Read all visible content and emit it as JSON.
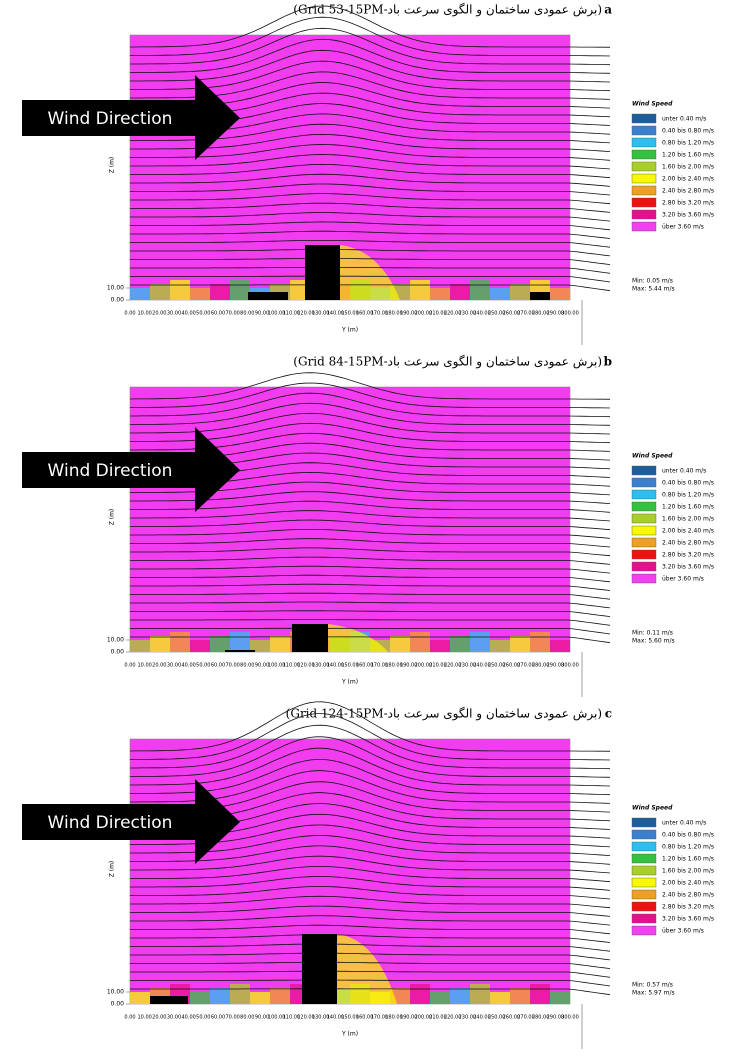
{
  "panels": [
    {
      "label": "a",
      "caption": "(برش عمودی ساختمان و الگوی سرعت باد-Grid 53-15PM)",
      "arrow_text": "Wind Direction",
      "y_axis_label": "Z (m)",
      "y_ticks": [
        "10.00",
        "0.00"
      ],
      "x_axis_label": "Y (m)",
      "x_ticks": [
        "0.00",
        "10.00",
        "20.00",
        "30.00",
        "40.00",
        "50.00",
        "60.00",
        "70.00",
        "80.00",
        "90.00",
        "100.00",
        "110.00",
        "120.00",
        "130.00",
        "140.00",
        "150.00",
        "160.00",
        "170.00",
        "180.00",
        "190.00",
        "200.00",
        "210.00",
        "220.00",
        "230.00",
        "240.00",
        "250.00",
        "260.00",
        "270.00",
        "280.00",
        "290.00",
        "300.00"
      ],
      "legend": {
        "title": "Wind Speed",
        "items": [
          {
            "label": "unter 0.40 m/s",
            "color": "#1f5f99"
          },
          {
            "label": "0.40 bis 0.80 m/s",
            "color": "#3a7fd0"
          },
          {
            "label": "0.80 bis 1.20 m/s",
            "color": "#29c0f0"
          },
          {
            "label": "1.20 bis 1.60 m/s",
            "color": "#36c040"
          },
          {
            "label": "1.60 bis 2.00 m/s",
            "color": "#a8d020"
          },
          {
            "label": "2.00 bis 2.40 m/s",
            "color": "#f8f800"
          },
          {
            "label": "2.40 bis 2.80 m/s",
            "color": "#f0a020"
          },
          {
            "label": "2.80 bis 3.20 m/s",
            "color": "#f01010"
          },
          {
            "label": "3.20 bis 3.60 m/s",
            "color": "#e8108a"
          },
          {
            "label": "über 3.60 m/s",
            "color": "#f040f0"
          }
        ]
      },
      "min": "Min: 0.05 m/s",
      "max": "Max: 5.44 m/s"
    },
    {
      "label": "b",
      "caption": "(برش عمودی ساختمان و الگوی سرعت باد-Grid 84-15PM)",
      "arrow_text": "Wind Direction",
      "y_axis_label": "Z (m)",
      "y_ticks": [
        "10.00",
        "0.00"
      ],
      "x_axis_label": "Y (m)",
      "x_ticks": [
        "0.00",
        "10.00",
        "20.00",
        "30.00",
        "40.00",
        "50.00",
        "60.00",
        "70.00",
        "80.00",
        "90.00",
        "100.00",
        "110.00",
        "120.00",
        "130.00",
        "140.00",
        "150.00",
        "160.00",
        "170.00",
        "180.00",
        "190.00",
        "200.00",
        "210.00",
        "220.00",
        "230.00",
        "240.00",
        "250.00",
        "260.00",
        "270.00",
        "280.00",
        "290.00",
        "300.00"
      ],
      "legend": {
        "title": "Wind Speed",
        "items": [
          {
            "label": "unter 0.40 m/s",
            "color": "#1f5f99"
          },
          {
            "label": "0.40 bis 0.80 m/s",
            "color": "#3a7fd0"
          },
          {
            "label": "0.80 bis 1.20 m/s",
            "color": "#29c0f0"
          },
          {
            "label": "1.20 bis 1.60 m/s",
            "color": "#36c040"
          },
          {
            "label": "1.60 bis 2.00 m/s",
            "color": "#a8d020"
          },
          {
            "label": "2.00 bis 2.40 m/s",
            "color": "#f8f800"
          },
          {
            "label": "2.40 bis 2.80 m/s",
            "color": "#f0a020"
          },
          {
            "label": "2.80 bis 3.20 m/s",
            "color": "#f01010"
          },
          {
            "label": "3.20 bis 3.60 m/s",
            "color": "#e8108a"
          },
          {
            "label": "über 3.60 m/s",
            "color": "#f040f0"
          }
        ]
      },
      "min": "Min: 0.11 m/s",
      "max": "Max: 5.60 m/s"
    },
    {
      "label": "c",
      "caption": "(برش عمودی ساختمان و الگوی سرعت باد-Grid 124-15PM)",
      "arrow_text": "Wind Direction",
      "y_axis_label": "Z (m)",
      "y_ticks": [
        "10.00",
        "0.00"
      ],
      "x_axis_label": "Y (m)",
      "x_ticks": [
        "0.00",
        "10.00",
        "20.00",
        "30.00",
        "40.00",
        "50.00",
        "60.00",
        "70.00",
        "80.00",
        "90.00",
        "100.00",
        "110.00",
        "120.00",
        "130.00",
        "140.00",
        "150.00",
        "160.00",
        "170.00",
        "180.00",
        "190.00",
        "200.00",
        "210.00",
        "220.00",
        "230.00",
        "240.00",
        "250.00",
        "260.00",
        "270.00",
        "280.00",
        "290.00",
        "300.00"
      ],
      "legend": {
        "title": "Wind Speed",
        "items": [
          {
            "label": "unter 0.40 m/s",
            "color": "#1f5f99"
          },
          {
            "label": "0.40 bis 0.80 m/s",
            "color": "#3a7fd0"
          },
          {
            "label": "0.80 bis 1.20 m/s",
            "color": "#29c0f0"
          },
          {
            "label": "1.20 bis 1.60 m/s",
            "color": "#36c040"
          },
          {
            "label": "1.60 bis 2.00 m/s",
            "color": "#a8d020"
          },
          {
            "label": "2.00 bis 2.40 m/s",
            "color": "#f8f800"
          },
          {
            "label": "2.40 bis 2.80 m/s",
            "color": "#f0a020"
          },
          {
            "label": "2.80 bis 3.20 m/s",
            "color": "#f01010"
          },
          {
            "label": "3.20 bis 3.60 m/s",
            "color": "#e8108a"
          },
          {
            "label": "über 3.60 m/s",
            "color": "#f040f0"
          }
        ]
      },
      "min": "Min: 0.57 m/s",
      "max": "Max: 5.97 m/s"
    }
  ]
}
